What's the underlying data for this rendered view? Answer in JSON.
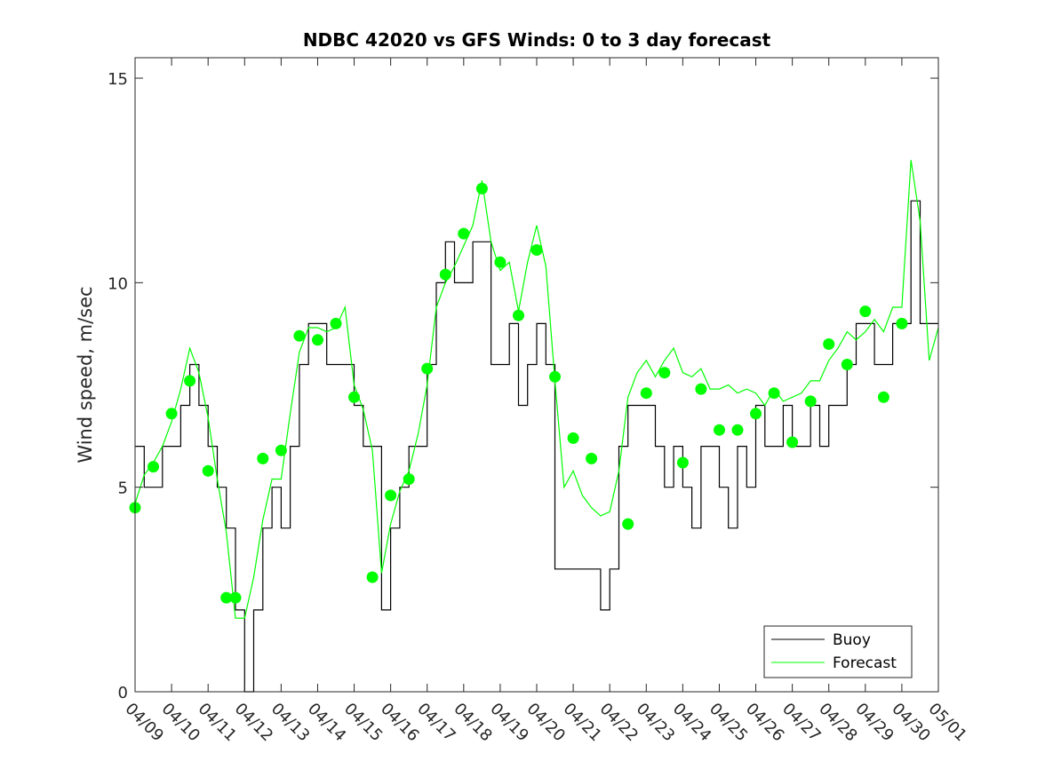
{
  "chart_data": {
    "type": "line",
    "title": "NDBC 42020 vs GFS Winds: 0 to 3 day forecast",
    "xlabel": "",
    "ylabel": "Wind speed, m/sec",
    "xlim": [
      "04/09",
      "05/01"
    ],
    "ylim": [
      0,
      15.5
    ],
    "x_tick_labels": [
      "04/09",
      "04/10",
      "04/11",
      "04/12",
      "04/13",
      "04/14",
      "04/15",
      "04/16",
      "04/17",
      "04/18",
      "04/19",
      "04/20",
      "04/21",
      "04/22",
      "04/23",
      "04/24",
      "04/25",
      "04/26",
      "04/27",
      "04/28",
      "04/29",
      "04/30",
      "05/01"
    ],
    "y_ticks": [
      0,
      5,
      10,
      15
    ],
    "grid": false,
    "legend": {
      "position": "bottom-right",
      "entries": [
        "Buoy",
        "Forecast"
      ]
    },
    "colors": {
      "buoy": "#000000",
      "forecast": "#00ff00",
      "axis": "#262626"
    },
    "series": [
      {
        "name": "Buoy",
        "x": [
          "04/09 00:00",
          "04/09 06:00",
          "04/09 12:00",
          "04/09 18:00",
          "04/10 00:00",
          "04/10 06:00",
          "04/10 12:00",
          "04/10 18:00",
          "04/11 00:00",
          "04/11 06:00",
          "04/11 12:00",
          "04/11 18:00",
          "04/12 00:00",
          "04/12 06:00",
          "04/12 12:00",
          "04/12 18:00",
          "04/13 00:00",
          "04/13 06:00",
          "04/13 12:00",
          "04/13 18:00",
          "04/14 00:00",
          "04/14 06:00",
          "04/14 12:00",
          "04/14 18:00",
          "04/15 00:00",
          "04/15 06:00",
          "04/15 12:00",
          "04/15 18:00",
          "04/16 00:00",
          "04/16 06:00",
          "04/16 12:00",
          "04/16 18:00",
          "04/17 00:00",
          "04/17 06:00",
          "04/17 12:00",
          "04/17 18:00",
          "04/18 00:00",
          "04/18 06:00",
          "04/18 12:00",
          "04/18 18:00",
          "04/19 00:00",
          "04/19 06:00",
          "04/19 12:00",
          "04/19 18:00",
          "04/20 00:00",
          "04/20 06:00",
          "04/20 12:00",
          "04/20 18:00",
          "04/21 00:00",
          "04/21 06:00",
          "04/21 12:00",
          "04/21 18:00",
          "04/22 00:00",
          "04/22 06:00",
          "04/22 12:00",
          "04/22 18:00",
          "04/23 00:00",
          "04/23 06:00",
          "04/23 12:00",
          "04/23 18:00",
          "04/24 00:00",
          "04/24 06:00",
          "04/24 12:00",
          "04/24 18:00",
          "04/25 00:00",
          "04/25 06:00",
          "04/25 12:00",
          "04/25 18:00",
          "04/26 00:00",
          "04/26 06:00",
          "04/26 12:00",
          "04/26 18:00",
          "04/27 00:00",
          "04/27 06:00",
          "04/27 12:00",
          "04/27 18:00",
          "04/28 00:00",
          "04/28 06:00",
          "04/28 12:00",
          "04/28 18:00",
          "04/29 00:00",
          "04/29 06:00",
          "04/29 12:00",
          "04/29 18:00",
          "04/30 00:00",
          "04/30 06:00",
          "04/30 12:00"
        ],
        "values": [
          6,
          5,
          5,
          6,
          6,
          7,
          8,
          7,
          6,
          5,
          4,
          2,
          0,
          2,
          4,
          5,
          4,
          6,
          8,
          9,
          9,
          8,
          8,
          8,
          7,
          6,
          6,
          2,
          4,
          5,
          6,
          6,
          8,
          10,
          11,
          10,
          10,
          11,
          11,
          8,
          8,
          9,
          7,
          8,
          9,
          8,
          3,
          3,
          3,
          3,
          3,
          2,
          3,
          6,
          7,
          7,
          7,
          6,
          5,
          6,
          5,
          4,
          6,
          6,
          5,
          4,
          6,
          5,
          7,
          6,
          6,
          7,
          6,
          6,
          7,
          6,
          7,
          7,
          8,
          9,
          9,
          8,
          8,
          9,
          9,
          12,
          9
        ]
      },
      {
        "name": "Forecast",
        "x": [
          "04/09 00:00",
          "04/09 06:00",
          "04/09 12:00",
          "04/09 18:00",
          "04/10 00:00",
          "04/10 06:00",
          "04/10 12:00",
          "04/10 18:00",
          "04/11 00:00",
          "04/11 06:00",
          "04/11 12:00",
          "04/11 18:00",
          "04/12 00:00",
          "04/12 06:00",
          "04/12 12:00",
          "04/12 18:00",
          "04/13 00:00",
          "04/13 06:00",
          "04/13 12:00",
          "04/13 18:00",
          "04/14 00:00",
          "04/14 06:00",
          "04/14 12:00",
          "04/14 18:00",
          "04/15 00:00",
          "04/15 06:00",
          "04/15 12:00",
          "04/15 18:00",
          "04/16 00:00",
          "04/16 06:00",
          "04/16 12:00",
          "04/16 18:00",
          "04/17 00:00",
          "04/17 06:00",
          "04/17 12:00",
          "04/17 18:00",
          "04/18 00:00",
          "04/18 06:00",
          "04/18 12:00",
          "04/18 18:00",
          "04/19 00:00",
          "04/19 06:00",
          "04/19 12:00",
          "04/19 18:00",
          "04/20 00:00",
          "04/20 06:00",
          "04/20 12:00",
          "04/20 18:00",
          "04/21 00:00",
          "04/21 06:00",
          "04/21 12:00",
          "04/21 18:00",
          "04/22 00:00",
          "04/22 06:00",
          "04/22 12:00",
          "04/22 18:00",
          "04/23 00:00",
          "04/23 06:00",
          "04/23 12:00",
          "04/23 18:00",
          "04/24 00:00",
          "04/24 06:00",
          "04/24 12:00",
          "04/24 18:00",
          "04/25 00:00",
          "04/25 06:00",
          "04/25 12:00",
          "04/25 18:00",
          "04/26 00:00",
          "04/26 06:00",
          "04/26 12:00",
          "04/26 18:00",
          "04/27 00:00",
          "04/27 06:00",
          "04/27 12:00",
          "04/27 18:00",
          "04/28 00:00",
          "04/28 06:00",
          "04/28 12:00",
          "04/28 18:00",
          "04/29 00:00",
          "04/29 06:00",
          "04/29 12:00",
          "04/29 18:00",
          "04/30 00:00",
          "04/30 06:00",
          "04/30 12:00",
          "04/30 18:00",
          "05/01 00:00"
        ],
        "values": [
          4.6,
          5.3,
          5.6,
          6.0,
          6.6,
          7.4,
          8.4,
          7.8,
          6.7,
          5.2,
          3.9,
          1.8,
          1.8,
          2.8,
          4.2,
          5.2,
          5.2,
          6.8,
          8.3,
          8.9,
          8.9,
          8.8,
          8.9,
          9.4,
          7.5,
          6.9,
          5.9,
          2.9,
          4.1,
          4.9,
          5.4,
          6.3,
          7.5,
          9.4,
          10.0,
          10.4,
          10.9,
          11.4,
          12.5,
          11.0,
          10.3,
          10.5,
          9.3,
          10.5,
          11.4,
          10.4,
          7.6,
          5.0,
          5.4,
          4.8,
          4.5,
          4.3,
          4.4,
          5.4,
          7.2,
          7.8,
          8.1,
          7.7,
          8.1,
          8.4,
          7.8,
          7.7,
          7.9,
          7.4,
          7.4,
          7.5,
          7.3,
          7.4,
          7.3,
          7.0,
          7.4,
          7.1,
          7.2,
          7.3,
          7.6,
          7.6,
          8.1,
          8.4,
          8.8,
          8.6,
          8.8,
          9.1,
          8.8,
          9.4,
          9.4,
          13.0,
          11.5,
          8.1,
          8.9
        ]
      },
      {
        "name": "",
        "marker": "circle",
        "x": [
          "04/09 00:00",
          "04/09 12:00",
          "04/10 00:00",
          "04/10 12:00",
          "04/11 00:00",
          "04/11 12:00",
          "04/11 18:00",
          "04/12 12:00",
          "04/13 00:00",
          "04/13 12:00",
          "04/14 00:00",
          "04/14 12:00",
          "04/15 00:00",
          "04/15 12:00",
          "04/16 00:00",
          "04/16 12:00",
          "04/17 00:00",
          "04/17 12:00",
          "04/18 00:00",
          "04/18 12:00",
          "04/19 00:00",
          "04/19 12:00",
          "04/20 00:00",
          "04/20 12:00",
          "04/21 00:00",
          "04/21 12:00",
          "04/22 12:00",
          "04/23 00:00",
          "04/23 12:00",
          "04/24 00:00",
          "04/24 12:00",
          "04/25 00:00",
          "04/25 12:00",
          "04/26 00:00",
          "04/26 12:00",
          "04/27 00:00",
          "04/27 12:00",
          "04/28 00:00",
          "04/28 12:00",
          "04/29 00:00",
          "04/29 12:00",
          "04/30 00:00"
        ],
        "values": [
          4.5,
          5.5,
          6.8,
          7.6,
          5.4,
          2.3,
          2.3,
          5.7,
          5.9,
          8.7,
          8.6,
          9.0,
          7.2,
          2.8,
          4.8,
          5.2,
          7.9,
          10.2,
          11.2,
          12.3,
          10.5,
          9.2,
          10.8,
          7.7,
          6.2,
          5.7,
          4.1,
          7.3,
          7.8,
          5.6,
          7.4,
          6.4,
          6.4,
          6.8,
          7.3,
          6.1,
          7.1,
          8.5,
          8.0,
          9.3,
          7.2,
          9.0
        ]
      }
    ]
  }
}
